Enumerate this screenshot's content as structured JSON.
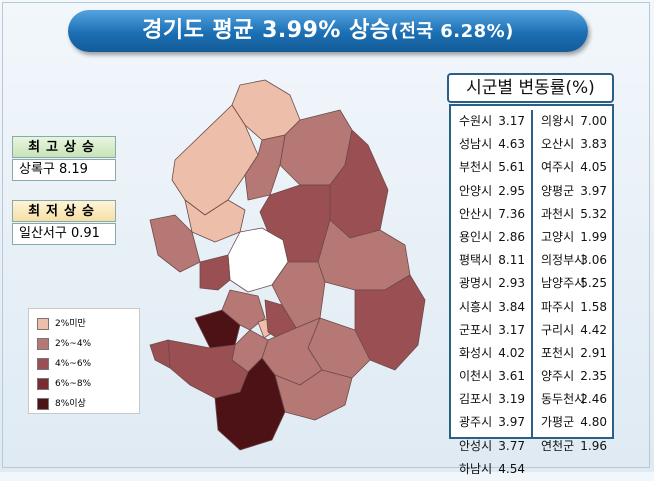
{
  "title": {
    "main": "경기도 평균 3.99% 상승",
    "sub": "(전국 6.28%)"
  },
  "highest": {
    "label": "최고상승",
    "value": "상록구 8.19"
  },
  "lowest": {
    "label": "최저상승",
    "value": "일산서구 0.91"
  },
  "table": {
    "header": "시군별 변동률(%)",
    "left": [
      {
        "name": "수원시",
        "value": "3.17"
      },
      {
        "name": "성남시",
        "value": "4.63"
      },
      {
        "name": "부천시",
        "value": "5.61"
      },
      {
        "name": "안양시",
        "value": "2.95"
      },
      {
        "name": "안산시",
        "value": "7.36"
      },
      {
        "name": "용인시",
        "value": "2.86"
      },
      {
        "name": "평택시",
        "value": "8.11"
      },
      {
        "name": "광명시",
        "value": "2.93"
      },
      {
        "name": "시흥시",
        "value": "3.84"
      },
      {
        "name": "군포시",
        "value": "3.17"
      },
      {
        "name": "화성시",
        "value": "4.02"
      },
      {
        "name": "이천시",
        "value": "3.61"
      },
      {
        "name": "김포시",
        "value": "3.19"
      },
      {
        "name": "광주시",
        "value": "3.97"
      },
      {
        "name": "안성시",
        "value": "3.77"
      },
      {
        "name": "하남시",
        "value": "4.54"
      }
    ],
    "right": [
      {
        "name": "의왕시",
        "value": "7.00"
      },
      {
        "name": "오산시",
        "value": "3.83"
      },
      {
        "name": "여주시",
        "value": "4.05"
      },
      {
        "name": "양평군",
        "value": "3.97"
      },
      {
        "name": "과천시",
        "value": "5.32"
      },
      {
        "name": "고양시",
        "value": "1.99"
      },
      {
        "name": "의정부시",
        "value": "3.06"
      },
      {
        "name": "남양주시",
        "value": "5.25"
      },
      {
        "name": "파주시",
        "value": "1.58"
      },
      {
        "name": "구리시",
        "value": "4.42"
      },
      {
        "name": "포천시",
        "value": "2.91"
      },
      {
        "name": "양주시",
        "value": "2.35"
      },
      {
        "name": "동두천시",
        "value": "2.46"
      },
      {
        "name": "가평군",
        "value": "4.80"
      },
      {
        "name": "연천군",
        "value": "1.96"
      }
    ]
  },
  "legend": [
    {
      "label": "2%미만",
      "color": "#edbfaa"
    },
    {
      "label": "2%~4%",
      "color": "#b57874"
    },
    {
      "label": "4%~6%",
      "color": "#9a4f52"
    },
    {
      "label": "6%~8%",
      "color": "#7b2c33"
    },
    {
      "label": "8%이상",
      "color": "#4c1216"
    }
  ]
}
